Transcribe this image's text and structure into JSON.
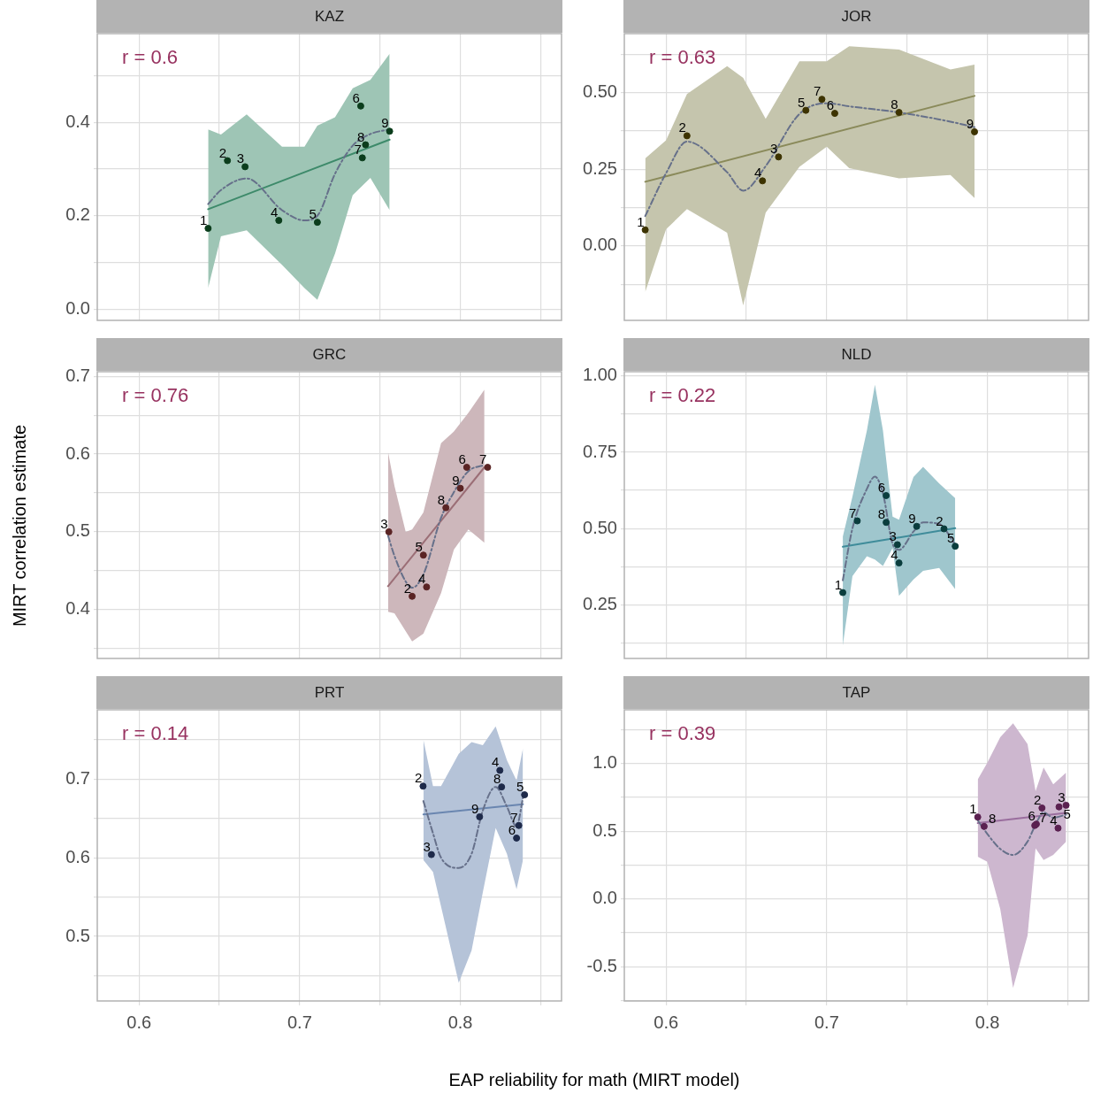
{
  "chart_data": [
    {
      "type": "scatter",
      "title": "KAZ",
      "xlim": [
        0.574,
        0.863
      ],
      "xticks": [
        0.6,
        {
          "value": 0.65,
          "label": null
        },
        0.7,
        {
          "value": 0.75,
          "label": null
        },
        0.8,
        {
          "value": 0.85,
          "label": null
        }
      ],
      "ylim": [
        -0.024,
        0.59
      ],
      "yticks": [
        {
          "value": 0,
          "label": "0.0"
        },
        {
          "value": 0.1,
          "label": null
        },
        0.2,
        {
          "value": 0.3,
          "label": null
        },
        0.4,
        {
          "value": 0.5,
          "label": null
        }
      ],
      "grid": true,
      "tick_labels": "y",
      "legend": false,
      "annotations": [
        "r = 0.6",
        {
          "text": "1",
          "x": 0.643,
          "y": 0.173
        },
        {
          "text": "2",
          "x": 0.655,
          "y": 0.318
        },
        {
          "text": "3",
          "x": 0.666,
          "y": 0.305
        },
        {
          "text": "4",
          "x": 0.687,
          "y": 0.19
        },
        {
          "text": "5",
          "x": 0.711,
          "y": 0.186
        },
        {
          "text": "6",
          "x": 0.738,
          "y": 0.435
        },
        {
          "text": "7",
          "x": 0.739,
          "y": 0.324
        },
        {
          "text": "8",
          "x": 0.741,
          "y": 0.352
        },
        {
          "text": "9",
          "x": 0.756,
          "y": 0.381
        }
      ],
      "series": [
        {
          "type": "line",
          "color": "#66708a",
          "line_style": "dashed",
          "x": [
            0.643,
            0.651,
            0.667,
            0.689,
            0.703,
            0.711,
            0.722,
            0.733,
            0.744,
            0.756
          ],
          "values": [
            0.225,
            0.255,
            0.28,
            0.212,
            0.19,
            0.2,
            0.29,
            0.35,
            0.375,
            0.385
          ],
          "lower": [
            0.045,
            0.156,
            0.169,
            0.095,
            0.045,
            0.02,
            0.119,
            0.244,
            0.281,
            0.212
          ],
          "upper": [
            0.385,
            0.374,
            0.417,
            0.348,
            0.348,
            0.393,
            0.411,
            0.473,
            0.491,
            0.547
          ]
        },
        {
          "type": "line",
          "color": "#3d8a6a",
          "line_style": "solid",
          "x": [
            0.643,
            0.756
          ],
          "values": [
            0.214,
            0.363
          ]
        },
        {
          "type": "scatter",
          "color": "#0b3d1c",
          "marker": "circle",
          "x": [
            0.643,
            0.655,
            0.666,
            0.687,
            0.711,
            0.738,
            0.739,
            0.741,
            0.756
          ],
          "values": [
            0.173,
            0.318,
            0.305,
            0.19,
            0.186,
            0.435,
            0.324,
            0.352,
            0.381
          ]
        }
      ]
    },
    {
      "type": "scatter",
      "title": "JOR",
      "xlim": [
        0.574,
        0.863
      ],
      "xticks": [
        0.6,
        {
          "value": 0.65,
          "label": null
        },
        0.7,
        {
          "value": 0.75,
          "label": null
        },
        0.8,
        {
          "value": 0.85,
          "label": null
        }
      ],
      "ylim": [
        -0.243,
        0.692
      ],
      "yticks": [
        {
          "value": -0.125,
          "label": null
        },
        {
          "value": 0,
          "label": "0.00"
        },
        {
          "value": 0.125,
          "label": null
        },
        0.25,
        {
          "value": 0.375,
          "label": null
        },
        {
          "value": 0.5,
          "label": "0.50"
        },
        {
          "value": 0.625,
          "label": null
        }
      ],
      "grid": true,
      "tick_labels": "y",
      "legend": false,
      "annotations": [
        "r = 0.63",
        {
          "text": "1",
          "x": 0.587,
          "y": 0.052
        },
        {
          "text": "2",
          "x": 0.613,
          "y": 0.359
        },
        {
          "text": "3",
          "x": 0.67,
          "y": 0.29
        },
        {
          "text": "4",
          "x": 0.66,
          "y": 0.212
        },
        {
          "text": "5",
          "x": 0.687,
          "y": 0.442
        },
        {
          "text": "6",
          "x": 0.705,
          "y": 0.432
        },
        {
          "text": "7",
          "x": 0.697,
          "y": 0.478
        },
        {
          "text": "8",
          "x": 0.745,
          "y": 0.435
        },
        {
          "text": "9",
          "x": 0.792,
          "y": 0.372
        }
      ],
      "series": [
        {
          "type": "line",
          "color": "#66708a",
          "line_style": "dashed",
          "x": [
            0.587,
            0.6,
            0.613,
            0.638,
            0.648,
            0.662,
            0.683,
            0.7,
            0.714,
            0.745,
            0.777,
            0.792
          ],
          "values": [
            0.097,
            0.237,
            0.34,
            0.24,
            0.18,
            0.26,
            0.43,
            0.465,
            0.455,
            0.435,
            0.405,
            0.387
          ],
          "lower": [
            -0.151,
            0.054,
            0.12,
            0.043,
            -0.194,
            0.108,
            0.258,
            0.323,
            0.253,
            0.22,
            0.231,
            0.156
          ],
          "upper": [
            0.285,
            0.344,
            0.495,
            0.586,
            0.548,
            0.414,
            0.602,
            0.602,
            0.651,
            0.64,
            0.575,
            0.591
          ]
        },
        {
          "type": "line",
          "color": "#8a8a5a",
          "line_style": "solid",
          "x": [
            0.587,
            0.792
          ],
          "values": [
            0.209,
            0.489
          ]
        },
        {
          "type": "scatter",
          "color": "#3d3300",
          "marker": "circle",
          "x": [
            0.587,
            0.613,
            0.67,
            0.66,
            0.687,
            0.705,
            0.697,
            0.745,
            0.792
          ],
          "values": [
            0.052,
            0.359,
            0.29,
            0.212,
            0.442,
            0.432,
            0.478,
            0.435,
            0.372
          ]
        }
      ]
    },
    {
      "type": "scatter",
      "title": "GRC",
      "ylabel": "MIRT correlation estimate",
      "xlim": [
        0.574,
        0.863
      ],
      "xticks": [
        0.6,
        {
          "value": 0.65,
          "label": null
        },
        0.7,
        {
          "value": 0.75,
          "label": null
        },
        0.8,
        {
          "value": 0.85,
          "label": null
        }
      ],
      "ylim": [
        0.337,
        0.706
      ],
      "yticks": [
        {
          "value": 0.35,
          "label": null
        },
        0.4,
        {
          "value": 0.45,
          "label": null
        },
        0.5,
        {
          "value": 0.55,
          "label": null
        },
        0.6,
        {
          "value": 0.65,
          "label": null
        },
        0.7
      ],
      "grid": true,
      "tick_labels": "y",
      "legend": false,
      "annotations": [
        "r = 0.76",
        {
          "text": "2",
          "x": 0.77,
          "y": 0.417
        },
        {
          "text": "3",
          "x": 0.7555,
          "y": 0.5
        },
        {
          "text": "4",
          "x": 0.779,
          "y": 0.429
        },
        {
          "text": "5",
          "x": 0.777,
          "y": 0.47
        },
        {
          "text": "6",
          "x": 0.804,
          "y": 0.583
        },
        {
          "text": "7",
          "x": 0.817,
          "y": 0.583
        },
        {
          "text": "8",
          "x": 0.791,
          "y": 0.531
        },
        {
          "text": "9",
          "x": 0.8,
          "y": 0.556
        }
      ],
      "series": [
        {
          "type": "line",
          "color": "#66708a",
          "line_style": "dashed",
          "x": [
            0.755,
            0.759,
            0.766,
            0.77,
            0.777,
            0.788,
            0.796,
            0.805,
            0.815
          ],
          "values": [
            0.495,
            0.469,
            0.436,
            0.428,
            0.445,
            0.518,
            0.551,
            0.578,
            0.586
          ],
          "lower": [
            0.397,
            0.395,
            0.372,
            0.359,
            0.369,
            0.421,
            0.477,
            0.503,
            0.486
          ],
          "upper": [
            0.603,
            0.559,
            0.5,
            0.503,
            0.525,
            0.614,
            0.629,
            0.653,
            0.683
          ]
        },
        {
          "type": "line",
          "color": "#9b6e76",
          "line_style": "solid",
          "x": [
            0.755,
            0.815
          ],
          "values": [
            0.43,
            0.583
          ]
        },
        {
          "type": "scatter",
          "color": "#5a2424",
          "marker": "circle",
          "x": [
            0.77,
            0.7555,
            0.779,
            0.777,
            0.804,
            0.817,
            0.791,
            0.8
          ],
          "values": [
            0.417,
            0.5,
            0.429,
            0.47,
            0.583,
            0.583,
            0.531,
            0.556
          ]
        }
      ]
    },
    {
      "type": "scatter",
      "title": "NLD",
      "xlim": [
        0.574,
        0.863
      ],
      "xticks": [
        0.6,
        {
          "value": 0.65,
          "label": null
        },
        0.7,
        {
          "value": 0.75,
          "label": null
        },
        0.8,
        {
          "value": 0.85,
          "label": null
        }
      ],
      "ylim": [
        0.074,
        1.014
      ],
      "yticks": [
        {
          "value": 0.125,
          "label": null
        },
        0.25,
        {
          "value": 0.375,
          "label": null
        },
        {
          "value": 0.5,
          "label": "0.50"
        },
        {
          "value": 0.625,
          "label": null
        },
        0.75,
        {
          "value": 0.875,
          "label": null
        },
        {
          "value": 1,
          "label": "1.00"
        }
      ],
      "grid": true,
      "tick_labels": "y",
      "legend": false,
      "annotations": [
        "r = 0.22",
        {
          "text": "1",
          "x": 0.71,
          "y": 0.29
        },
        {
          "text": "2",
          "x": 0.773,
          "y": 0.499
        },
        {
          "text": "3",
          "x": 0.744,
          "y": 0.447
        },
        {
          "text": "4",
          "x": 0.745,
          "y": 0.387
        },
        {
          "text": "5",
          "x": 0.78,
          "y": 0.442
        },
        {
          "text": "6",
          "x": 0.737,
          "y": 0.608
        },
        {
          "text": "7",
          "x": 0.719,
          "y": 0.525
        },
        {
          "text": "8",
          "x": 0.737,
          "y": 0.52
        },
        {
          "text": "9",
          "x": 0.756,
          "y": 0.507
        }
      ],
      "series": [
        {
          "type": "line",
          "color": "#66708a",
          "line_style": "dashed",
          "x": [
            0.71,
            0.716,
            0.725,
            0.73,
            0.735,
            0.741,
            0.745,
            0.754,
            0.76,
            0.77,
            0.78
          ],
          "values": [
            0.33,
            0.5,
            0.63,
            0.67,
            0.615,
            0.45,
            0.43,
            0.49,
            0.52,
            0.515,
            0.447
          ],
          "lower": [
            0.117,
            0.344,
            0.409,
            0.398,
            0.377,
            0.436,
            0.279,
            0.333,
            0.361,
            0.371,
            0.301
          ],
          "upper": [
            0.474,
            0.604,
            0.821,
            0.971,
            0.821,
            0.539,
            0.529,
            0.669,
            0.702,
            0.648,
            0.599
          ]
        },
        {
          "type": "line",
          "color": "#3f8c9a",
          "line_style": "solid",
          "x": [
            0.71,
            0.78
          ],
          "values": [
            0.44,
            0.501
          ]
        },
        {
          "type": "scatter",
          "color": "#0a3d3d",
          "marker": "circle",
          "x": [
            0.71,
            0.773,
            0.744,
            0.745,
            0.78,
            0.737,
            0.719,
            0.737,
            0.756
          ],
          "values": [
            0.29,
            0.499,
            0.447,
            0.387,
            0.442,
            0.608,
            0.525,
            0.52,
            0.507
          ]
        }
      ]
    },
    {
      "type": "scatter",
      "title": "PRT",
      "xlabel": "EAP reliability for math (MIRT model)",
      "xlim": [
        0.574,
        0.863
      ],
      "xticks": [
        0.6,
        {
          "value": 0.65,
          "label": null
        },
        0.7,
        {
          "value": 0.75,
          "label": null
        },
        0.8,
        {
          "value": 0.85,
          "label": null
        }
      ],
      "ylim": [
        0.418,
        0.788
      ],
      "yticks": [
        {
          "value": 0.45,
          "label": null
        },
        0.5,
        {
          "value": 0.55,
          "label": null
        },
        0.6,
        {
          "value": 0.65,
          "label": null
        },
        0.7,
        {
          "value": 0.75,
          "label": null
        }
      ],
      "grid": true,
      "legend": false,
      "annotations": [
        "r = 0.14",
        {
          "text": "2",
          "x": 0.7768,
          "y": 0.691
        },
        {
          "text": "3",
          "x": 0.782,
          "y": 0.604
        },
        {
          "text": "4",
          "x": 0.8246,
          "y": 0.711
        },
        {
          "text": "5",
          "x": 0.84,
          "y": 0.68
        },
        {
          "text": "6",
          "x": 0.835,
          "y": 0.625
        },
        {
          "text": "7",
          "x": 0.8364,
          "y": 0.641
        },
        {
          "text": "8",
          "x": 0.8257,
          "y": 0.69
        },
        {
          "text": "9",
          "x": 0.812,
          "y": 0.652
        }
      ],
      "series": [
        {
          "type": "line",
          "color": "#66708a",
          "line_style": "dashed",
          "x": [
            0.777,
            0.783,
            0.788,
            0.799,
            0.807,
            0.814,
            0.822,
            0.829,
            0.835,
            0.839
          ],
          "values": [
            0.672,
            0.631,
            0.6,
            0.587,
            0.605,
            0.66,
            0.69,
            0.665,
            0.64,
            0.676
          ],
          "lower": [
            0.597,
            0.582,
            0.538,
            0.441,
            0.482,
            0.556,
            0.638,
            0.605,
            0.56,
            0.597
          ],
          "upper": [
            0.75,
            0.691,
            0.691,
            0.732,
            0.747,
            0.743,
            0.767,
            0.724,
            0.698,
            0.739
          ]
        },
        {
          "type": "line",
          "color": "#6a86b0",
          "line_style": "solid",
          "x": [
            0.777,
            0.839
          ],
          "values": [
            0.655,
            0.668
          ]
        },
        {
          "type": "scatter",
          "color": "#1e2a4a",
          "marker": "circle",
          "x": [
            0.7768,
            0.782,
            0.8246,
            0.84,
            0.835,
            0.8364,
            0.8257,
            0.812
          ],
          "values": [
            0.691,
            0.604,
            0.711,
            0.68,
            0.625,
            0.641,
            0.69,
            0.652
          ]
        }
      ]
    },
    {
      "type": "scatter",
      "title": "TAP",
      "xlim": [
        0.574,
        0.863
      ],
      "xticks": [
        0.6,
        {
          "value": 0.65,
          "label": null
        },
        0.7,
        {
          "value": 0.75,
          "label": null
        },
        0.8,
        {
          "value": 0.85,
          "label": null
        }
      ],
      "ylim": [
        -0.753,
        1.397
      ],
      "yticks": [
        {
          "value": -0.75,
          "label": null
        },
        -0.5,
        {
          "value": -0.25,
          "label": null
        },
        {
          "value": 0,
          "label": "0.0"
        },
        {
          "value": 0.25,
          "label": null
        },
        0.5,
        {
          "value": 0.75,
          "label": null
        },
        {
          "value": 1,
          "label": "1.0"
        },
        {
          "value": 1.25,
          "label": null
        }
      ],
      "grid": true,
      "legend": false,
      "annotations": [
        "r = 0.39",
        {
          "text": "1",
          "x": 0.794,
          "y": 0.605
        },
        {
          "text": "2",
          "x": 0.834,
          "y": 0.672
        },
        {
          "text": "3",
          "x": 0.849,
          "y": 0.692
        },
        {
          "text": "4",
          "x": 0.844,
          "y": 0.523
        },
        {
          "text": "5",
          "x": 0.8446,
          "y": 0.68
        },
        {
          "text": "6",
          "x": 0.8305,
          "y": 0.553
        },
        {
          "text": "7",
          "x": 0.8295,
          "y": 0.543
        },
        {
          "text": "8",
          "x": 0.798,
          "y": 0.536
        }
      ],
      "series": [
        {
          "type": "line",
          "color": "#66708a",
          "line_style": "dashed",
          "x": [
            0.794,
            0.8,
            0.808,
            0.816,
            0.825,
            0.83,
            0.835,
            0.841,
            0.849
          ],
          "values": [
            0.58,
            0.48,
            0.37,
            0.325,
            0.424,
            0.55,
            0.64,
            0.6,
            0.623
          ],
          "lower": [
            0.312,
            0.275,
            -0.073,
            -0.656,
            -0.271,
            0.374,
            0.287,
            0.325,
            0.424
          ],
          "upper": [
            0.883,
            1.007,
            1.194,
            1.298,
            1.144,
            0.796,
            0.97,
            0.846,
            0.933
          ]
        },
        {
          "type": "line",
          "color": "#9a6e9e",
          "line_style": "solid",
          "x": [
            0.794,
            0.849
          ],
          "values": [
            0.56,
            0.635
          ]
        },
        {
          "type": "scatter",
          "color": "#5a2050",
          "marker": "circle",
          "x": [
            0.794,
            0.834,
            0.849,
            0.844,
            0.8446,
            0.8305,
            0.8295,
            0.798
          ],
          "values": [
            0.605,
            0.672,
            0.692,
            0.523,
            0.68,
            0.553,
            0.543,
            0.536
          ]
        }
      ]
    }
  ]
}
